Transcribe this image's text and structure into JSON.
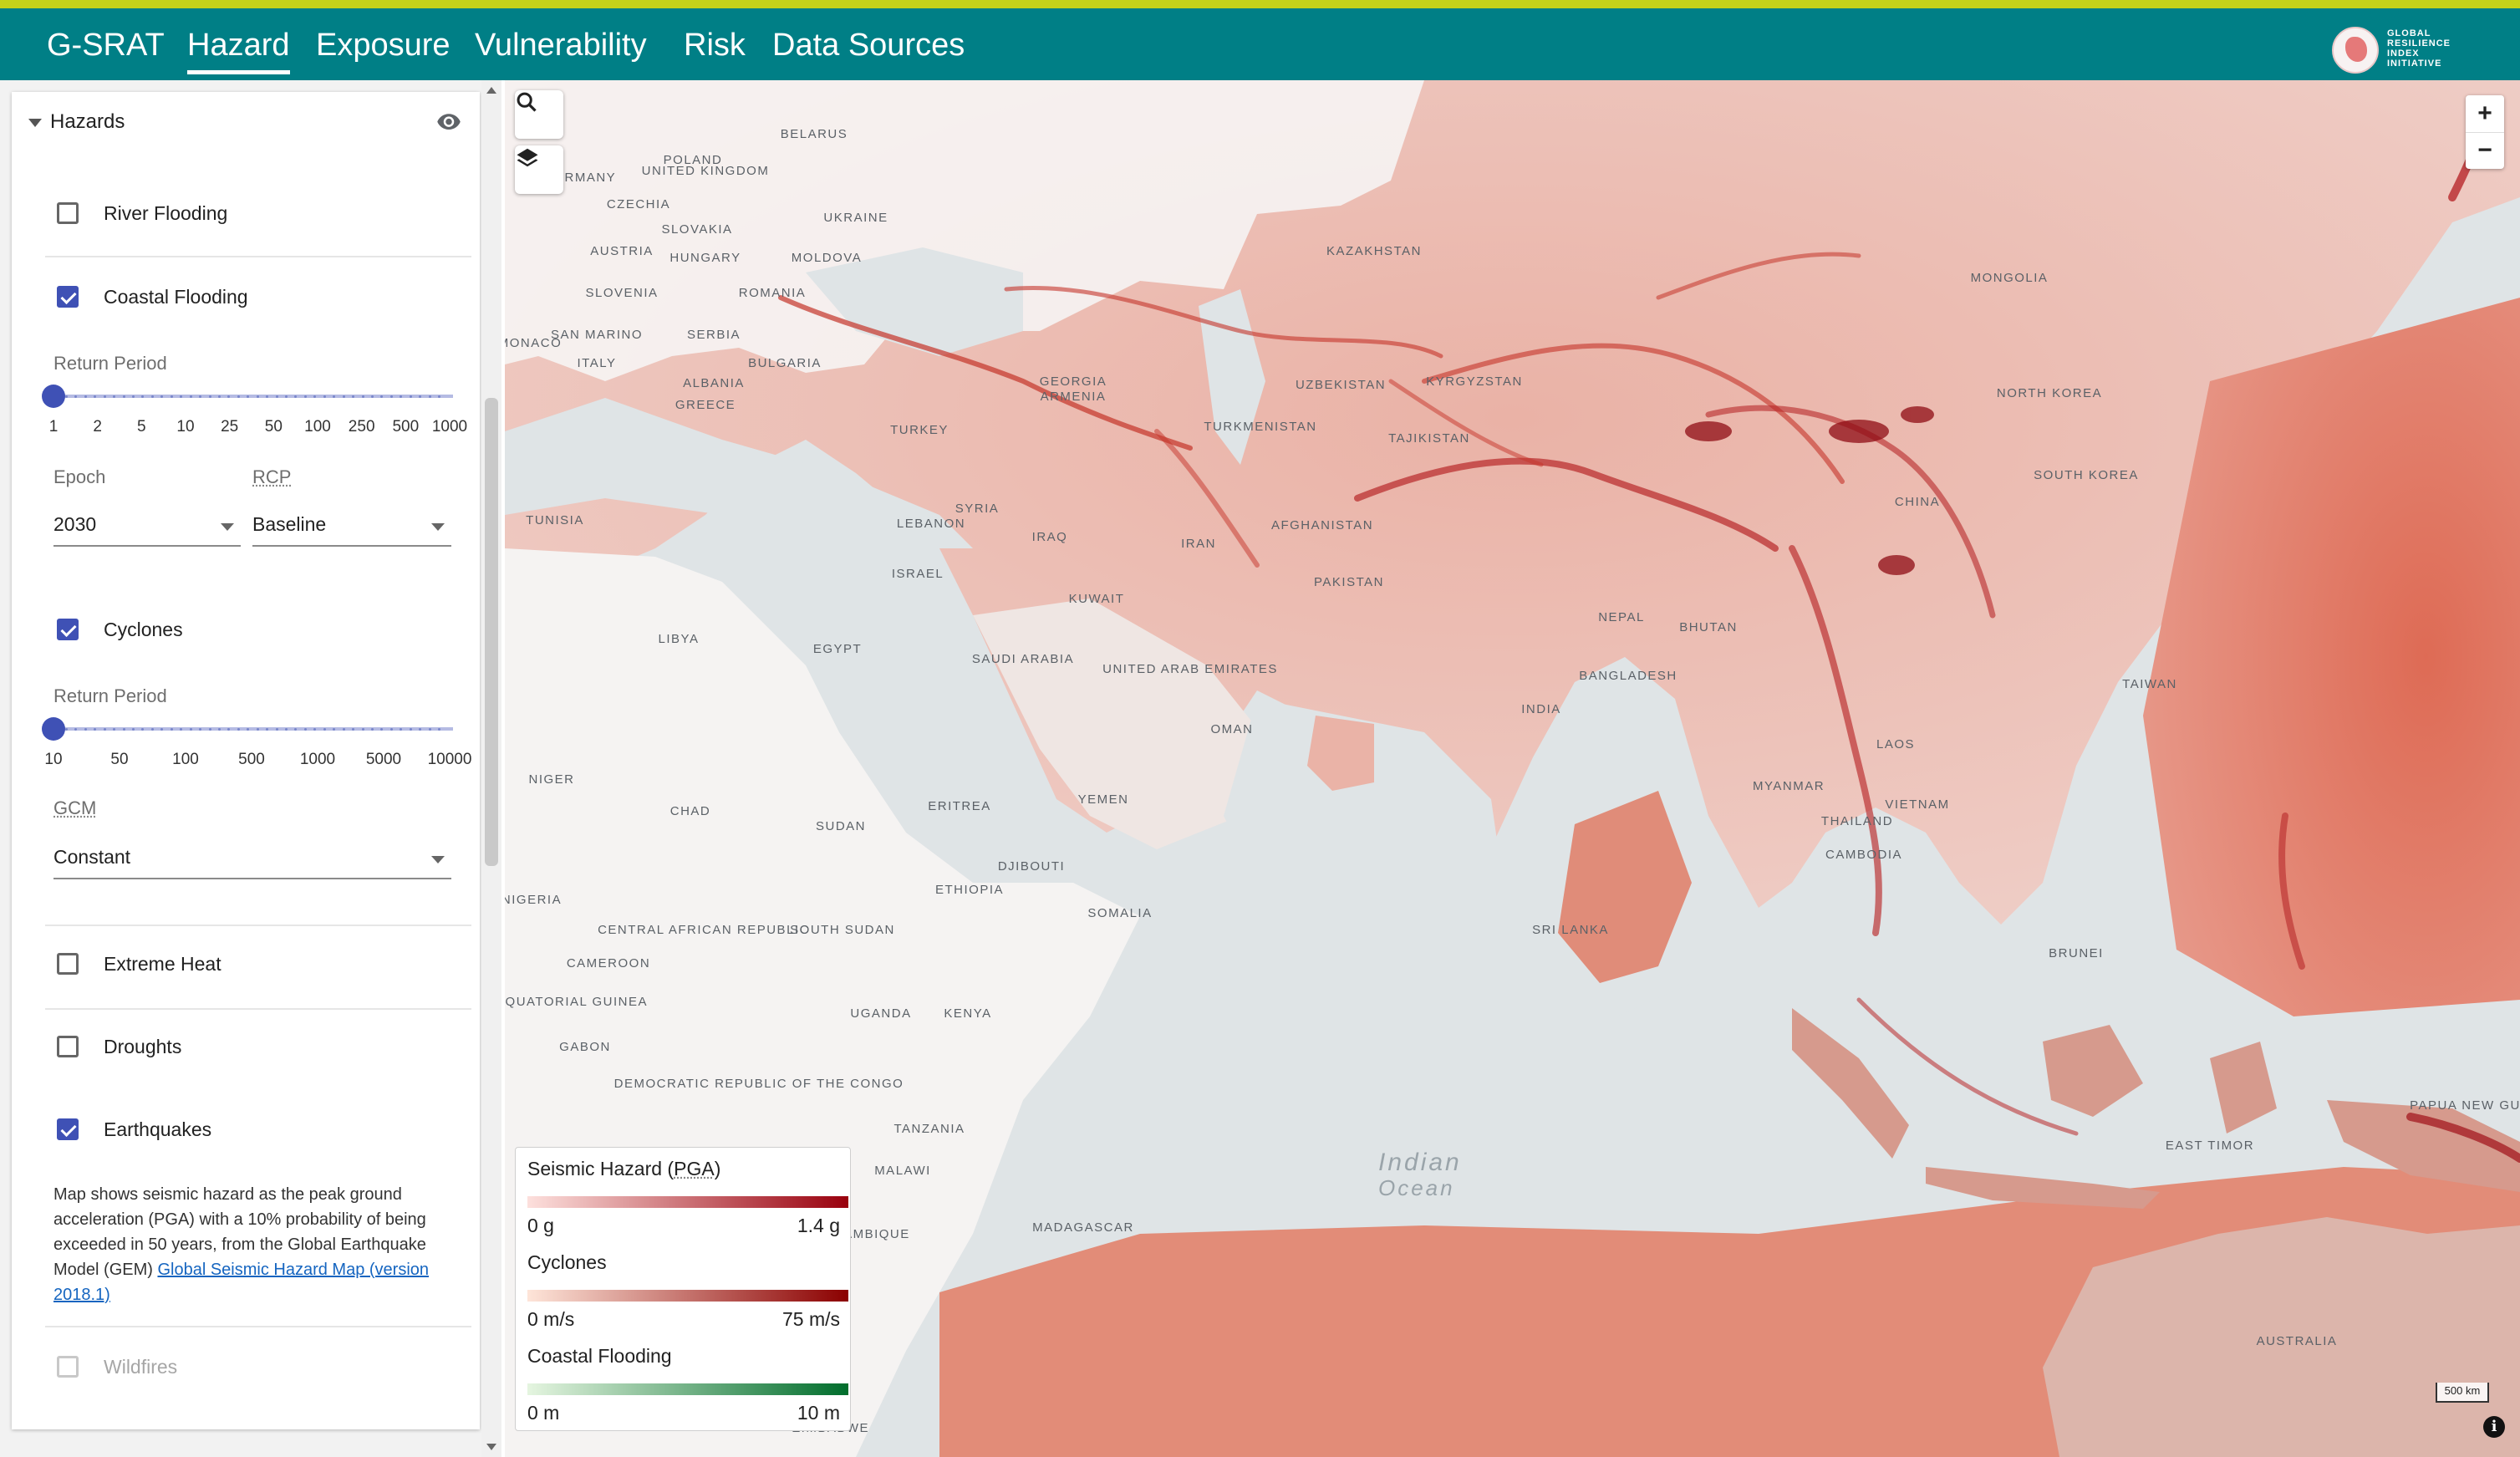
{
  "nav": {
    "brand": "G-SRAT",
    "tabs": [
      {
        "label": "Hazard",
        "active": true
      },
      {
        "label": "Exposure",
        "active": false
      },
      {
        "label": "Vulnerability",
        "active": false
      },
      {
        "label": "Risk",
        "active": false
      },
      {
        "label": "Data Sources",
        "active": false
      }
    ],
    "logo_text": "GLOBAL RESILIENCE INDEX INITIATIVE"
  },
  "colors": {
    "topline": "#c5d21a",
    "appbar": "#007f86",
    "accent": "#3f51b5",
    "hazard_high": "#a50f15"
  },
  "sidebar": {
    "title": "Hazards",
    "hazards": {
      "river_flooding": {
        "label": "River Flooding",
        "checked": false
      },
      "coastal_flooding": {
        "label": "Coastal Flooding",
        "checked": true,
        "return_period_label": "Return Period",
        "return_period_ticks": [
          "1",
          "2",
          "5",
          "10",
          "25",
          "50",
          "100",
          "250",
          "500",
          "1000"
        ],
        "return_period_value": "1",
        "epoch_label": "Epoch",
        "epoch_value": "2030",
        "rcp_label": "RCP",
        "rcp_value": "Baseline"
      },
      "cyclones": {
        "label": "Cyclones",
        "checked": true,
        "return_period_label": "Return Period",
        "return_period_ticks": [
          "10",
          "50",
          "100",
          "500",
          "1000",
          "5000",
          "10000"
        ],
        "return_period_value": "10",
        "gcm_label": "GCM",
        "gcm_value": "Constant"
      },
      "extreme_heat": {
        "label": "Extreme Heat",
        "checked": false
      },
      "droughts": {
        "label": "Droughts",
        "checked": false
      },
      "earthquakes": {
        "label": "Earthquakes",
        "checked": true,
        "description": "Map shows seismic hazard as the peak ground acceleration (PGA) with a 10% probability of being exceeded in 50 years, from the Global Earthquake Model (GEM)",
        "link_text": "Global Seismic Hazard Map (version 2018.1)"
      },
      "wildfires": {
        "label": "Wildfires",
        "checked": false,
        "disabled": true
      }
    }
  },
  "map": {
    "ocean_label_1": "Indian",
    "ocean_label_2": "Ocean",
    "scale_label": "500 km",
    "zoom_in": "+",
    "zoom_out": "−",
    "info": "i",
    "places": [
      {
        "name": "Belarus"
      },
      {
        "name": "Poland"
      },
      {
        "name": "Germany"
      },
      {
        "name": "Czechia"
      },
      {
        "name": "Ukraine"
      },
      {
        "name": "Slovakia"
      },
      {
        "name": "Austria"
      },
      {
        "name": "Hungary"
      },
      {
        "name": "Moldova"
      },
      {
        "name": "Slovenia"
      },
      {
        "name": "Romania"
      },
      {
        "name": "Monaco"
      },
      {
        "name": "San Marino"
      },
      {
        "name": "Serbia"
      },
      {
        "name": "Italy"
      },
      {
        "name": "Bulgaria"
      },
      {
        "name": "Albania"
      },
      {
        "name": "Greece"
      },
      {
        "name": "Georgia"
      },
      {
        "name": "Armenia"
      },
      {
        "name": "Turkey"
      },
      {
        "name": "Kazakhstan"
      },
      {
        "name": "Mongolia"
      },
      {
        "name": "Uzbekistan"
      },
      {
        "name": "Kyrgyzstan"
      },
      {
        "name": "Turkmenistan"
      },
      {
        "name": "Tajikistan"
      },
      {
        "name": "North Korea"
      },
      {
        "name": "South Korea"
      },
      {
        "name": "Tunisia"
      },
      {
        "name": "Lebanon"
      },
      {
        "name": "Syria"
      },
      {
        "name": "Iraq"
      },
      {
        "name": "Iran"
      },
      {
        "name": "Afghanistan"
      },
      {
        "name": "China"
      },
      {
        "name": "Israel"
      },
      {
        "name": "Pakistan"
      },
      {
        "name": "Kuwait"
      },
      {
        "name": "Nepal"
      },
      {
        "name": "Bhutan"
      },
      {
        "name": "Libya"
      },
      {
        "name": "Egypt"
      },
      {
        "name": "Saudi Arabia"
      },
      {
        "name": "United Arab Emirates"
      },
      {
        "name": "Bangladesh"
      },
      {
        "name": "India"
      },
      {
        "name": "Oman"
      },
      {
        "name": "Taiwan"
      },
      {
        "name": "Laos"
      },
      {
        "name": "Niger"
      },
      {
        "name": "Myanmar"
      },
      {
        "name": "Chad"
      },
      {
        "name": "Eritrea"
      },
      {
        "name": "Yemen"
      },
      {
        "name": "Vietnam"
      },
      {
        "name": "Thailand"
      },
      {
        "name": "Sudan"
      },
      {
        "name": "Cambodia"
      },
      {
        "name": "Djibouti"
      },
      {
        "name": "Ethiopia"
      },
      {
        "name": "Nigeria"
      },
      {
        "name": "Somalia"
      },
      {
        "name": "Central African Republic"
      },
      {
        "name": "South Sudan"
      },
      {
        "name": "Sri Lanka"
      },
      {
        "name": "Cameroon"
      },
      {
        "name": "Brunei"
      },
      {
        "name": "Equatorial Guinea"
      },
      {
        "name": "Uganda"
      },
      {
        "name": "Kenya"
      },
      {
        "name": "Gabon"
      },
      {
        "name": "Democratic Republic of the Congo"
      },
      {
        "name": "Papua New Guinea"
      },
      {
        "name": "Tanzania"
      },
      {
        "name": "East Timor"
      },
      {
        "name": "Malawi"
      },
      {
        "name": "Madagascar"
      },
      {
        "name": "Mozambique"
      },
      {
        "name": "Australia"
      },
      {
        "name": "Zimbabwe"
      },
      {
        "name": "United Kingdom"
      }
    ]
  },
  "legend": {
    "seismic": {
      "title_prefix": "Seismic Hazard (",
      "title_abbr": "PGA",
      "title_suffix": ")",
      "min": "0 g",
      "max": "1.4 g",
      "color_low": "#fde0dd",
      "color_high": "#99000d"
    },
    "cyclones": {
      "title": "Cyclones",
      "min": "0 m/s",
      "max": "75 m/s",
      "color_low": "#fee5d9",
      "color_high": "#8b0000"
    },
    "coastal": {
      "title": "Coastal Flooding",
      "min": "0 m",
      "max": "10 m",
      "color_low": "#e5f5e0",
      "color_high": "#006d2c"
    }
  }
}
